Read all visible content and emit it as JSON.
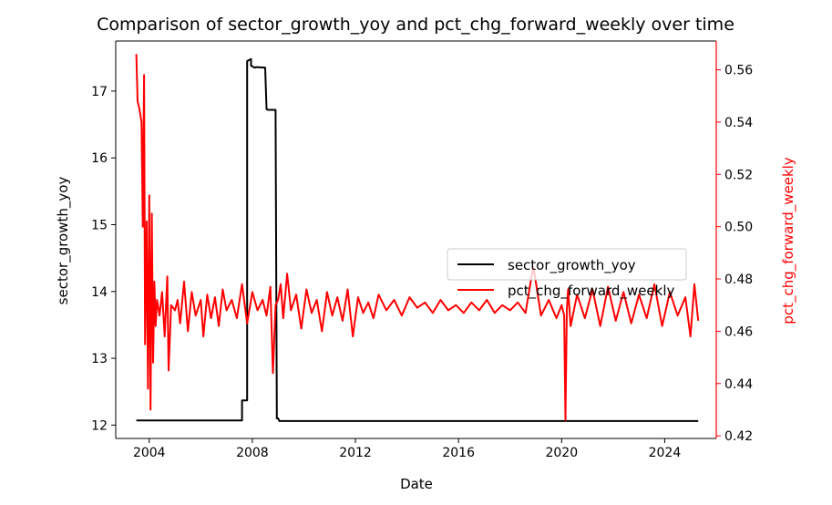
{
  "chart_data": {
    "type": "line",
    "title": "Comparison of sector_growth_yoy and pct_chg_forward_weekly over time",
    "xlabel": "Date",
    "ylabel_left": "sector_growth_yoy",
    "ylabel_right": "pct_chg_forward_weekly",
    "xlim": [
      2002.7,
      2026.0
    ],
    "ylim_left": [
      11.8,
      17.75
    ],
    "ylim_right": [
      0.419,
      0.571
    ],
    "x_ticks": [
      2004,
      2008,
      2012,
      2016,
      2020,
      2024
    ],
    "x_tick_labels": [
      "2004",
      "2008",
      "2012",
      "2016",
      "2020",
      "2024"
    ],
    "y_left_ticks": [
      12,
      13,
      14,
      15,
      16,
      17
    ],
    "y_right_ticks": [
      0.42,
      0.44,
      0.46,
      0.48,
      0.5,
      0.52,
      0.54,
      0.56
    ],
    "y_right_tick_labels": [
      "0.42",
      "0.44",
      "0.46",
      "0.48",
      "0.50",
      "0.52",
      "0.54",
      "0.56"
    ],
    "legend": {
      "placement": "center-right",
      "entries": [
        {
          "label": "sector_growth_yoy",
          "color": "#000000"
        },
        {
          "label": "pct_chg_forward_weekly",
          "color": "#ff0000"
        }
      ]
    },
    "series": [
      {
        "name": "sector_growth_yoy",
        "axis": "left",
        "color": "#000000",
        "x": [
          2003.5,
          2007.6,
          2007.6,
          2007.8,
          2007.8,
          2007.95,
          2007.95,
          2008.1,
          2008.15,
          2008.5,
          2008.55,
          2008.6,
          2008.65,
          2008.9,
          2008.95,
          2009.0,
          2009.05,
          2025.3
        ],
        "y": [
          12.07,
          12.07,
          12.37,
          12.37,
          17.45,
          17.48,
          17.38,
          17.35,
          17.36,
          17.35,
          16.73,
          16.72,
          16.72,
          16.72,
          12.1,
          12.1,
          12.06,
          12.06
        ]
      },
      {
        "name": "pct_chg_forward_weekly",
        "axis": "right",
        "color": "#ff0000",
        "x": [
          2003.5,
          2003.55,
          2003.62,
          2003.7,
          2003.75,
          2003.8,
          2003.84,
          2003.9,
          2003.95,
          2004.0,
          2004.05,
          2004.1,
          2004.15,
          2004.2,
          2004.25,
          2004.3,
          2004.4,
          2004.5,
          2004.6,
          2004.7,
          2004.75,
          2004.85,
          2005.0,
          2005.1,
          2005.2,
          2005.35,
          2005.5,
          2005.65,
          2005.8,
          2006.0,
          2006.1,
          2006.25,
          2006.4,
          2006.55,
          2006.7,
          2006.85,
          2007.0,
          2007.2,
          2007.4,
          2007.6,
          2007.8,
          2008.0,
          2008.2,
          2008.4,
          2008.55,
          2008.7,
          2008.8,
          2008.9,
          2009.0,
          2009.1,
          2009.2,
          2009.35,
          2009.5,
          2009.7,
          2009.9,
          2010.1,
          2010.3,
          2010.5,
          2010.7,
          2010.9,
          2011.1,
          2011.3,
          2011.5,
          2011.7,
          2011.9,
          2012.1,
          2012.3,
          2012.5,
          2012.7,
          2012.9,
          2013.2,
          2013.5,
          2013.8,
          2014.1,
          2014.4,
          2014.7,
          2015.0,
          2015.3,
          2015.6,
          2015.9,
          2016.2,
          2016.5,
          2016.8,
          2017.1,
          2017.4,
          2017.7,
          2018.0,
          2018.3,
          2018.6,
          2018.9,
          2019.2,
          2019.5,
          2019.8,
          2020.0,
          2020.1,
          2020.15,
          2020.2,
          2020.25,
          2020.35,
          2020.6,
          2020.9,
          2021.2,
          2021.5,
          2021.8,
          2022.1,
          2022.4,
          2022.7,
          2023.0,
          2023.3,
          2023.6,
          2023.9,
          2024.2,
          2024.5,
          2024.8,
          2025.0,
          2025.15,
          2025.3
        ],
        "y": [
          0.566,
          0.548,
          0.545,
          0.54,
          0.5,
          0.558,
          0.455,
          0.502,
          0.438,
          0.512,
          0.43,
          0.505,
          0.448,
          0.479,
          0.462,
          0.472,
          0.466,
          0.475,
          0.458,
          0.481,
          0.445,
          0.47,
          0.468,
          0.472,
          0.463,
          0.479,
          0.46,
          0.475,
          0.466,
          0.472,
          0.458,
          0.474,
          0.465,
          0.473,
          0.462,
          0.476,
          0.468,
          0.472,
          0.465,
          0.478,
          0.463,
          0.475,
          0.468,
          0.472,
          0.466,
          0.477,
          0.444,
          0.47,
          0.472,
          0.478,
          0.465,
          0.482,
          0.468,
          0.474,
          0.461,
          0.476,
          0.467,
          0.472,
          0.46,
          0.475,
          0.466,
          0.473,
          0.464,
          0.476,
          0.458,
          0.473,
          0.467,
          0.471,
          0.465,
          0.474,
          0.468,
          0.472,
          0.466,
          0.473,
          0.469,
          0.471,
          0.467,
          0.472,
          0.468,
          0.47,
          0.467,
          0.471,
          0.468,
          0.472,
          0.467,
          0.47,
          0.468,
          0.471,
          0.467,
          0.485,
          0.466,
          0.472,
          0.465,
          0.47,
          0.466,
          0.426,
          0.468,
          0.476,
          0.462,
          0.474,
          0.465,
          0.476,
          0.462,
          0.477,
          0.464,
          0.475,
          0.463,
          0.474,
          0.465,
          0.478,
          0.462,
          0.475,
          0.466,
          0.473,
          0.458,
          0.478,
          0.464
        ]
      }
    ]
  }
}
